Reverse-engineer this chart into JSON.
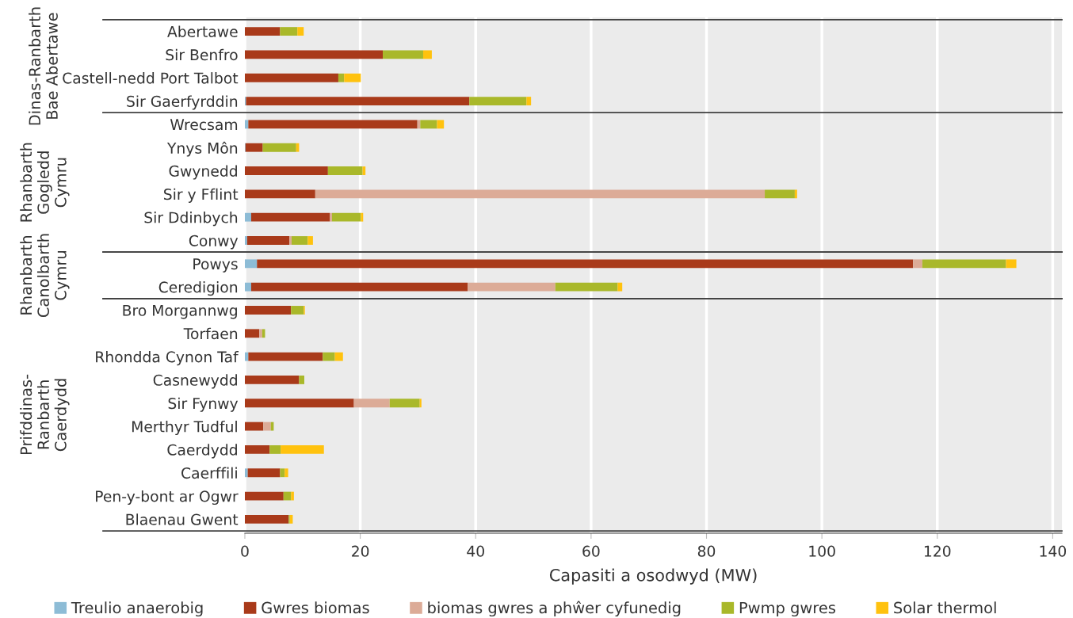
{
  "chart_data": {
    "type": "bar",
    "orientation": "horizontal",
    "stacked": true,
    "categories": [
      "Abertawe",
      "Sir Benfro",
      "Castell-nedd Port Talbot",
      "Sir Gaerfyrddin",
      "Wrecsam",
      "Ynys Môn",
      "Gwynedd",
      "Sir y Fflint",
      "Sir Ddinbych",
      "Conwy",
      "Powys",
      "Ceredigion",
      "Bro Morgannwg",
      "Torfaen",
      "Rhondda Cynon Taf",
      "Casnewydd",
      "Sir Fynwy",
      "Merthyr Tudful",
      "Caerdydd",
      "Caerffili",
      "Pen-y-bont ar Ogwr",
      "Blaenau Gwent"
    ],
    "series": [
      {
        "name": "Treulio anaerobig",
        "color": "#8dbcd6",
        "values": [
          0,
          0,
          0,
          0.2,
          0.6,
          0.1,
          0,
          0,
          1.1,
          0.4,
          2.1,
          1.1,
          0,
          0,
          0.6,
          0,
          0,
          0,
          0,
          0.5,
          0,
          0
        ]
      },
      {
        "name": "Gwres biomas",
        "color": "#a93a1a",
        "values": [
          6.1,
          23.9,
          16.2,
          38.7,
          29.3,
          3.0,
          14.4,
          12.2,
          13.6,
          7.3,
          113.7,
          37.5,
          8.0,
          2.5,
          12.9,
          9.4,
          18.9,
          3.2,
          4.3,
          5.6,
          6.7,
          7.6
        ]
      },
      {
        "name": "biomas gwres a phŵer cyfunedig",
        "color": "#dcab97",
        "values": [
          0,
          0,
          0,
          0,
          0.5,
          0,
          0,
          77.9,
          0.4,
          0.4,
          1.6,
          15.2,
          0,
          0.5,
          0,
          0,
          6.2,
          1.3,
          0,
          0,
          0,
          0
        ]
      },
      {
        "name": "Pwmp gwres",
        "color": "#a9b82a",
        "values": [
          3.0,
          7.0,
          1.0,
          9.9,
          2.9,
          5.8,
          6.0,
          5.2,
          5.0,
          2.8,
          14.5,
          10.8,
          2.2,
          0.5,
          2.1,
          0.9,
          5.2,
          0.5,
          1.9,
          0.8,
          1.3,
          0.2
        ]
      },
      {
        "name": "Solar thermol",
        "color": "#ffc20e",
        "values": [
          1.1,
          1.5,
          2.9,
          0.8,
          1.2,
          0.5,
          0.5,
          0.4,
          0.4,
          0.9,
          1.8,
          0.8,
          0.2,
          0,
          1.4,
          0,
          0.3,
          0,
          7.5,
          0.6,
          0.5,
          0.5
        ]
      }
    ],
    "xlim": [
      0,
      141.6
    ],
    "xticks": [
      0,
      20,
      40,
      60,
      80,
      100,
      120,
      140
    ],
    "xlabel": "Capasiti a osodwyd (MW)",
    "grid": "x",
    "legend": "bottom",
    "annotations": [
      "Dinas-Ranbarth\nBae Abertawe",
      "Rhanbarth\nGogledd\nCymru",
      "Rhanbarth\nCanolbarth\nCymru",
      "Prifddinas-\nRanbarth\nCaerdydd"
    ]
  }
}
